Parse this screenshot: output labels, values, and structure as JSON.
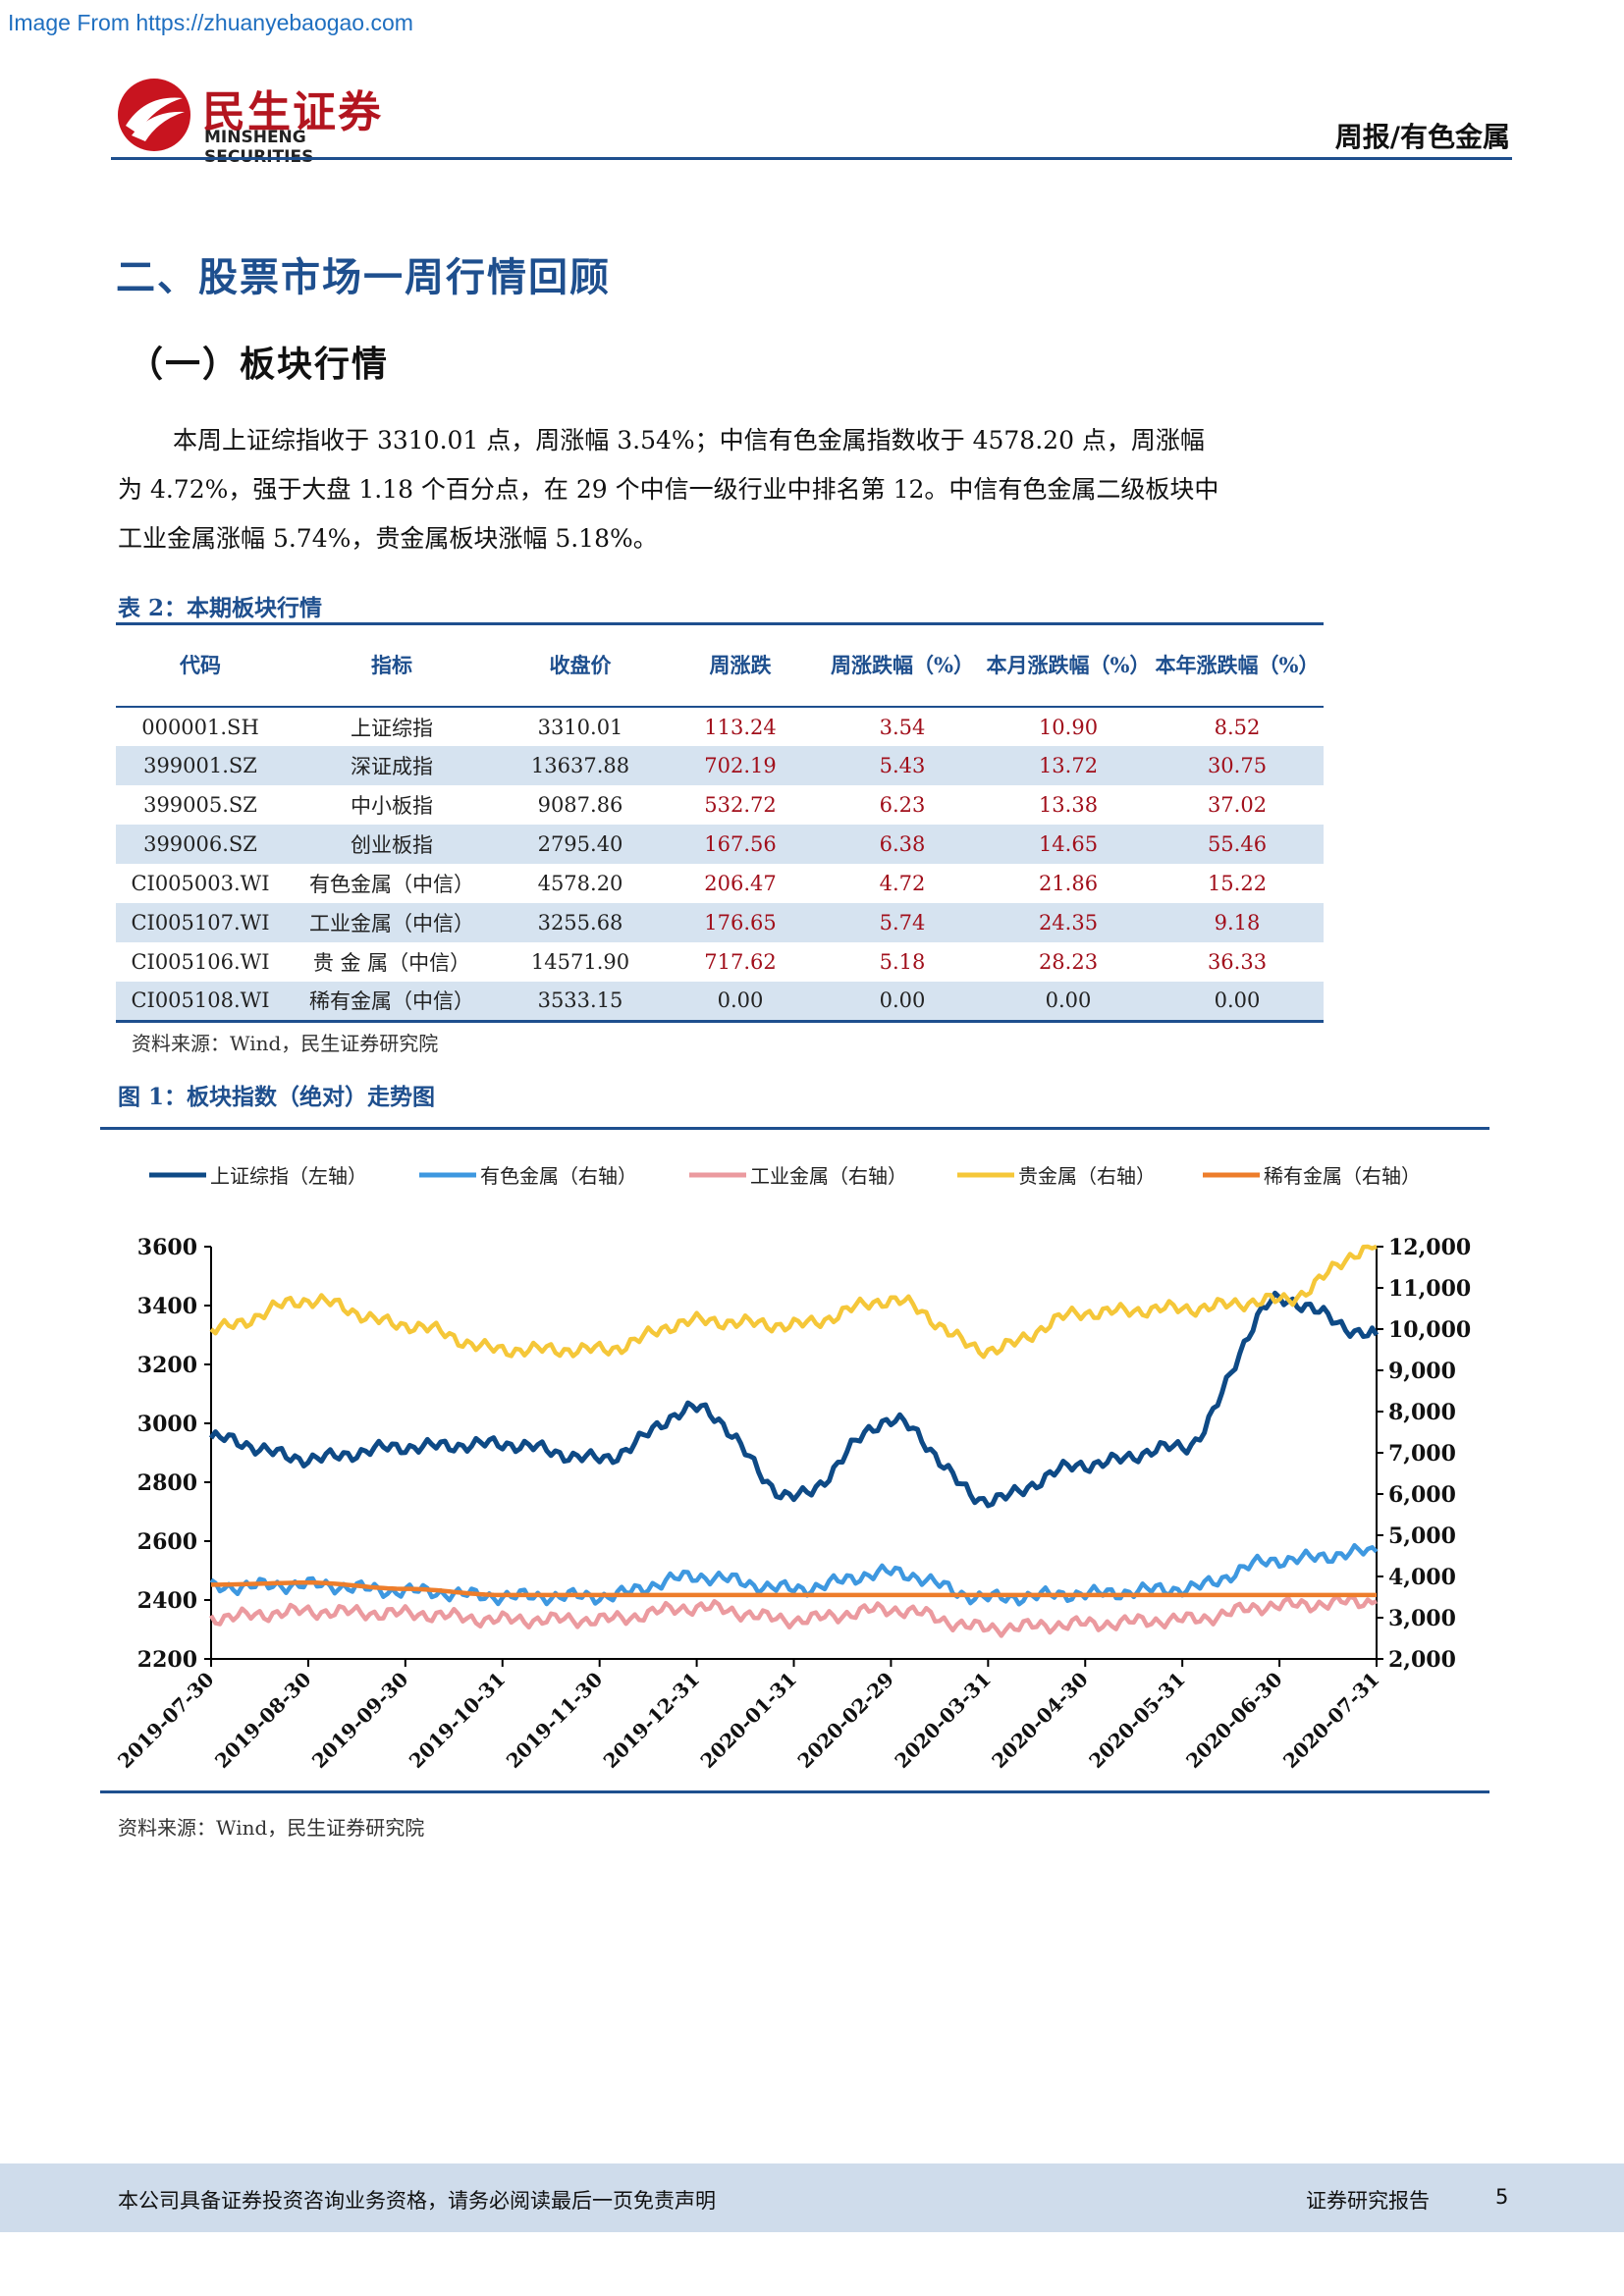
{
  "watermark": "Image From https://zhuanyebaogao.com",
  "logo": {
    "cn": "民生证券",
    "en": "MINSHENG SECURITIES"
  },
  "header": {
    "category": "周报/有色金属"
  },
  "section_title": "二、股票市场一周行情回顾",
  "subsection_title": "（一）板块行情",
  "paragraph": "本周上证综指收于 3310.01 点，周涨幅 3.54%；中信有色金属指数收于 4578.20 点，周涨幅为 4.72%，强于大盘 1.18 个百分点，在 29 个中信一级行业中排名第 12。中信有色金属二级板块中工业金属涨幅 5.74%，贵金属板块涨幅 5.18%。",
  "table": {
    "caption": "表 2：本期板块行情",
    "headers": [
      "代码",
      "指标",
      "收盘价",
      "周涨跌",
      "周涨跌幅（%）",
      "本月涨跌幅（%）",
      "本年涨跌幅（%）"
    ],
    "rows": [
      [
        "000001.SH",
        "上证综指",
        "3310.01",
        "113.24",
        "3.54",
        "10.90",
        "8.52"
      ],
      [
        "399001.SZ",
        "深证成指",
        "13637.88",
        "702.19",
        "5.43",
        "13.72",
        "30.75"
      ],
      [
        "399005.SZ",
        "中小板指",
        "9087.86",
        "532.72",
        "6.23",
        "13.38",
        "37.02"
      ],
      [
        "399006.SZ",
        "创业板指",
        "2795.40",
        "167.56",
        "6.38",
        "14.65",
        "55.46"
      ],
      [
        "CI005003.WI",
        "有色金属（中信）",
        "4578.20",
        "206.47",
        "4.72",
        "21.86",
        "15.22"
      ],
      [
        "CI005107.WI",
        "工业金属（中信）",
        "3255.68",
        "176.65",
        "5.74",
        "24.35",
        "9.18"
      ],
      [
        "CI005106.WI",
        "贵 金 属（中信）",
        "14571.90",
        "717.62",
        "5.18",
        "28.23",
        "36.33"
      ],
      [
        "CI005108.WI",
        "稀有金属（中信）",
        "3533.15",
        "0.00",
        "0.00",
        "0.00",
        "0.00"
      ]
    ],
    "source": "资料来源：Wind，民生证券研究院"
  },
  "figure": {
    "caption": "图 1：板块指数（绝对）走势图",
    "source": "资料来源：Wind，民生证券研究院"
  },
  "chart_data": {
    "type": "line",
    "title": "",
    "x": [
      "2019-07-30",
      "2019-08-30",
      "2019-09-30",
      "2019-10-31",
      "2019-11-30",
      "2019-12-31",
      "2020-01-31",
      "2020-02-29",
      "2020-03-31",
      "2020-04-30",
      "2020-05-31",
      "2020-06-30",
      "2020-07-31"
    ],
    "y_left": {
      "ylim": [
        2200,
        3600
      ],
      "ticks": [
        "2200",
        "2400",
        "2600",
        "2800",
        "3000",
        "3200",
        "3400",
        "3600"
      ]
    },
    "y_right": {
      "ylim": [
        2000,
        12000
      ],
      "ticks": [
        "2,000",
        "3,000",
        "4,000",
        "5,000",
        "6,000",
        "7,000",
        "8,000",
        "9,000",
        "10,000",
        "11,000",
        "12,000"
      ]
    },
    "legend_position": "top",
    "series": [
      {
        "name": "上证综指（左轴）",
        "axis": "left",
        "color": "#0e4a86",
        "values": [
          2950,
          2880,
          2920,
          2930,
          2880,
          3050,
          2750,
          3010,
          2740,
          2860,
          2920,
          3420,
          3300
        ]
      },
      {
        "name": "有色金属（右轴）",
        "axis": "right",
        "color": "#3e98e0",
        "values": [
          3750,
          3800,
          3650,
          3520,
          3520,
          4000,
          3700,
          4100,
          3480,
          3580,
          3700,
          4400,
          4600
        ]
      },
      {
        "name": "工业金属（右轴）",
        "axis": "right",
        "color": "#eb9a9f",
        "values": [
          3000,
          3150,
          3100,
          2950,
          2950,
          3250,
          2950,
          3200,
          2750,
          2850,
          2950,
          3300,
          3400
        ]
      },
      {
        "name": "贵金属（右轴）",
        "axis": "right",
        "color": "#f5c739",
        "values": [
          10000,
          10700,
          10100,
          9500,
          9500,
          10200,
          10100,
          10700,
          9500,
          10400,
          10500,
          10700,
          12000
        ]
      },
      {
        "name": "稀有金属（右轴）",
        "axis": "right",
        "color": "#ed7d2b",
        "values": [
          3800,
          3850,
          3700,
          3550,
          3550,
          3550,
          3550,
          3550,
          3550,
          3550,
          3550,
          3550,
          3550
        ]
      }
    ]
  },
  "footer": {
    "disclaimer": "本公司具备证券投资咨询业务资格，请务必阅读最后一页免责声明",
    "report_type": "证券研究报告",
    "page": "5"
  }
}
